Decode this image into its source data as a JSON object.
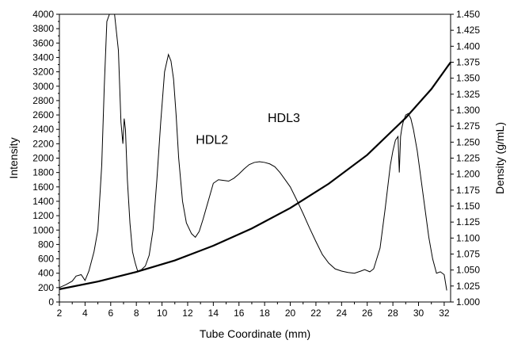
{
  "chart_data": {
    "type": "line",
    "title": "",
    "xlabel": "Tube Coordinate (mm)",
    "ylabel": "Intensity",
    "y2label": "Density (g/mL)",
    "xlim": [
      2,
      32.5
    ],
    "ylim": [
      0,
      4000
    ],
    "y2lim": [
      1.0,
      1.45
    ],
    "x_ticks": [
      2,
      4,
      6,
      8,
      10,
      12,
      14,
      16,
      18,
      20,
      22,
      24,
      26,
      28,
      30,
      32
    ],
    "y_ticks": [
      0,
      200,
      400,
      600,
      800,
      1000,
      1200,
      1400,
      1600,
      1800,
      2000,
      2200,
      2400,
      2600,
      2800,
      3000,
      3200,
      3400,
      3600,
      3800,
      4000
    ],
    "y2_ticks": [
      "1.000",
      "1.025",
      "1.050",
      "1.075",
      "1.100",
      "1.125",
      "1.150",
      "1.175",
      "1.200",
      "1.225",
      "1.250",
      "1.275",
      "1.300",
      "1.325",
      "1.350",
      "1.375",
      "1.400",
      "1.425",
      "1.450"
    ],
    "annotations": [
      {
        "text": "HDL2",
        "x": 13.9,
        "y": 2200
      },
      {
        "text": "HDL3",
        "x": 19.5,
        "y": 2500
      }
    ],
    "series": [
      {
        "axis": "left",
        "x": [
          2,
          2.5,
          3.0,
          3.3,
          3.7,
          4.0,
          4.3,
          4.7,
          5.0,
          5.3,
          5.5,
          5.7,
          5.9,
          6.0,
          6.3,
          6.6,
          6.8,
          6.95,
          7.05,
          7.15,
          7.3,
          7.5,
          7.7,
          7.9,
          8.1,
          8.4,
          8.7,
          9.0,
          9.3,
          9.6,
          9.9,
          10.2,
          10.5,
          10.7,
          10.9,
          11.1,
          11.3,
          11.6,
          11.9,
          12.3,
          12.6,
          12.9,
          13.2,
          13.6,
          14.0,
          14.4,
          14.8,
          15.2,
          15.6,
          16.0,
          16.4,
          16.8,
          17.2,
          17.6,
          18.0,
          18.4,
          18.8,
          19.2,
          19.6,
          20.0,
          20.5,
          21.0,
          21.5,
          22.0,
          22.5,
          23.0,
          23.5,
          24.0,
          24.5,
          25.0,
          25.5,
          25.8,
          26.2,
          26.5,
          27.0,
          27.4,
          27.8,
          28.0,
          28.2,
          28.4,
          28.5,
          28.6,
          28.7,
          28.8,
          29.0,
          29.2,
          29.4,
          29.6,
          29.9,
          30.2,
          30.5,
          30.8,
          31.1,
          31.4,
          31.7,
          32.0,
          32.2
        ],
        "y": [
          200,
          240,
          290,
          360,
          380,
          300,
          430,
          700,
          1000,
          1900,
          3000,
          3900,
          4000,
          4000,
          4000,
          3500,
          2500,
          2200,
          2550,
          2400,
          1700,
          1100,
          700,
          550,
          430,
          450,
          500,
          650,
          1000,
          1700,
          2500,
          3200,
          3440,
          3350,
          3100,
          2600,
          2000,
          1400,
          1100,
          950,
          900,
          980,
          1150,
          1400,
          1650,
          1700,
          1690,
          1680,
          1720,
          1780,
          1850,
          1910,
          1940,
          1950,
          1940,
          1920,
          1880,
          1800,
          1700,
          1600,
          1420,
          1230,
          1030,
          840,
          660,
          540,
          460,
          430,
          410,
          400,
          430,
          450,
          420,
          460,
          750,
          1300,
          1900,
          2100,
          2250,
          2300,
          1800,
          2300,
          2420,
          2500,
          2600,
          2620,
          2550,
          2400,
          2100,
          1700,
          1300,
          900,
          600,
          400,
          420,
          380,
          160
        ]
      },
      {
        "axis": "right",
        "x": [
          2,
          5,
          8,
          11,
          14,
          17,
          20,
          23,
          26,
          29,
          31,
          32.5
        ],
        "y": [
          1.02,
          1.032,
          1.047,
          1.065,
          1.088,
          1.115,
          1.147,
          1.185,
          1.23,
          1.288,
          1.333,
          1.375
        ]
      }
    ]
  }
}
